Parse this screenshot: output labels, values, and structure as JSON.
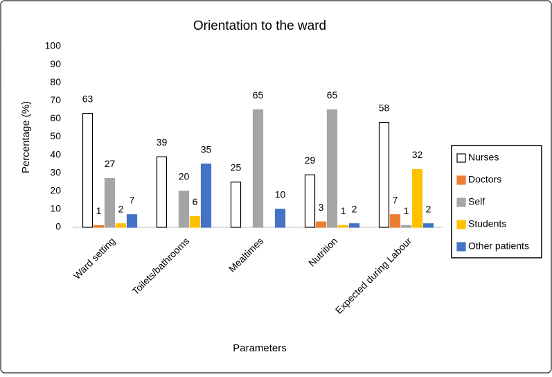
{
  "chart_data": {
    "type": "bar",
    "title": "Orientation to the ward",
    "x_label": "Parameters",
    "y_label": "Percentage (%)",
    "categories": [
      "Ward setting",
      "Toilets/bathrooms",
      "Mealtimes",
      "Nutrition",
      "Expected during Labour"
    ],
    "series": [
      {
        "name": "Nurses",
        "color": "#ffffff",
        "values": [
          63,
          39,
          25,
          29,
          58
        ]
      },
      {
        "name": "Doctors",
        "color": "#ed7d31",
        "values": [
          1,
          null,
          null,
          3,
          7
        ]
      },
      {
        "name": "Self",
        "color": "#a5a5a5",
        "values": [
          27,
          20,
          65,
          65,
          1
        ]
      },
      {
        "name": "Students",
        "color": "#ffc000",
        "values": [
          2,
          6,
          null,
          1,
          32
        ]
      },
      {
        "name": "Other patients",
        "color": "#4472c4",
        "values": [
          7,
          35,
          10,
          2,
          2
        ]
      }
    ],
    "ylim": [
      0,
      100
    ],
    "yticks": [
      0,
      10,
      20,
      30,
      40,
      50,
      60,
      70,
      80,
      90,
      100
    ],
    "legend": "right"
  }
}
